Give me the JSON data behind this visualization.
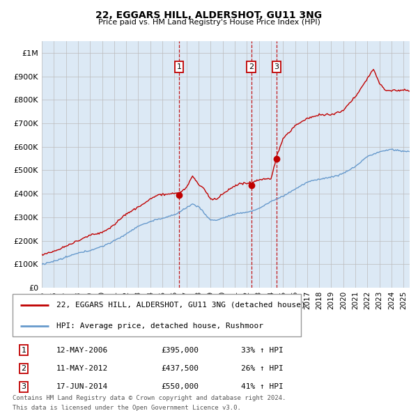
{
  "title": "22, EGGARS HILL, ALDERSHOT, GU11 3NG",
  "subtitle": "Price paid vs. HM Land Registry's House Price Index (HPI)",
  "plot_bg_color": "#dce9f5",
  "ylim": [
    0,
    1050000
  ],
  "yticks": [
    0,
    100000,
    200000,
    300000,
    400000,
    500000,
    600000,
    700000,
    800000,
    900000,
    1000000
  ],
  "ytick_labels": [
    "£0",
    "£100K",
    "£200K",
    "£300K",
    "£400K",
    "£500K",
    "£600K",
    "£700K",
    "£800K",
    "£900K",
    "£1M"
  ],
  "xlim_start": 1995.0,
  "xlim_end": 2025.5,
  "transactions": [
    {
      "num": 1,
      "date_label": "12-MAY-2006",
      "x": 2006.37,
      "price": 395000,
      "pct": "33%"
    },
    {
      "num": 2,
      "date_label": "11-MAY-2012",
      "x": 2012.37,
      "price": 437500,
      "pct": "26%"
    },
    {
      "num": 3,
      "date_label": "17-JUN-2014",
      "x": 2014.46,
      "price": 550000,
      "pct": "41%"
    }
  ],
  "legend_line1": "22, EGGARS HILL, ALDERSHOT, GU11 3NG (detached house)",
  "legend_line2": "HPI: Average price, detached house, Rushmoor",
  "footer1": "Contains HM Land Registry data © Crown copyright and database right 2024.",
  "footer2": "This data is licensed under the Open Government Licence v3.0.",
  "red_line_color": "#c00000",
  "blue_line_color": "#6699cc",
  "transaction_box_color": "#c00000",
  "vline_color": "#c00000",
  "grid_color": "#bbbbbb",
  "xtick_years": [
    1995,
    1996,
    1997,
    1998,
    1999,
    2000,
    2001,
    2002,
    2003,
    2004,
    2005,
    2006,
    2007,
    2008,
    2009,
    2010,
    2011,
    2012,
    2013,
    2014,
    2015,
    2016,
    2017,
    2018,
    2019,
    2020,
    2021,
    2022,
    2023,
    2024,
    2025
  ]
}
